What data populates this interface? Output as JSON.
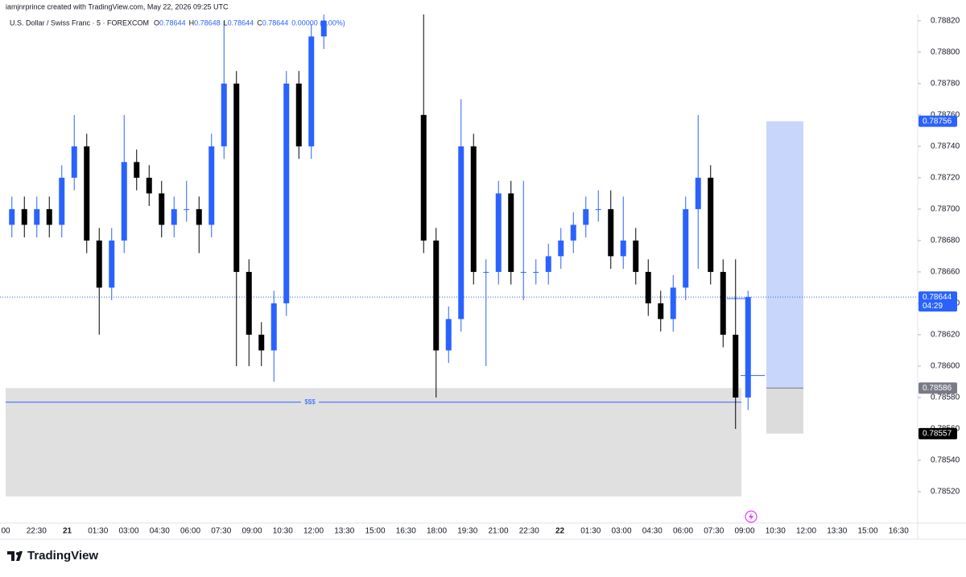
{
  "header": {
    "attribution": "iamjnrprince created with TradingView.com, May 22, 2026 09:25 UTC",
    "symbol": "U.S. Dollar / Swiss Franc · 5 · FOREXCOM",
    "ohlc": [
      {
        "label": "O",
        "value": "0.78644"
      },
      {
        "label": "H",
        "value": "0.78648"
      },
      {
        "label": "L",
        "value": "0.78644"
      },
      {
        "label": "C",
        "value": "0.78644"
      }
    ],
    "change": "0.00000 (0.00%)"
  },
  "chart_data": {
    "type": "candlestick",
    "up_color": "#2962ff",
    "down_color": "#000000",
    "open": [
      0.7869,
      0.787,
      0.7869,
      0.787,
      0.7869,
      0.7872,
      0.7874,
      0.7868,
      0.7865,
      0.7868,
      0.7873,
      0.7872,
      0.7871,
      0.7869,
      0.787,
      0.787,
      0.7869,
      0.7874,
      0.7878,
      0.7866,
      0.7862,
      0.7861,
      0.7864,
      0.7878,
      0.7874,
      0.7881,
      null,
      null,
      null,
      null,
      null,
      null,
      null,
      0.7876,
      0.7868,
      0.7861,
      0.7863,
      0.7874,
      0.7866,
      0.7866,
      0.7871,
      0.7866,
      0.7866,
      0.7866,
      0.7867,
      0.7868,
      0.7869,
      0.787,
      0.787,
      0.7867,
      0.7868,
      0.7866,
      0.7864,
      0.7863,
      0.7865,
      0.787,
      0.7872,
      0.7866,
      0.7862,
      0.7858
    ],
    "high": [
      0.78708,
      0.78708,
      0.78708,
      0.78708,
      0.78728,
      0.7876,
      0.78748,
      0.78688,
      0.78688,
      0.7876,
      0.78738,
      0.78728,
      0.78718,
      0.78708,
      0.78718,
      0.78708,
      0.78748,
      0.7882,
      0.78788,
      0.78668,
      0.78628,
      0.78648,
      0.78788,
      0.78788,
      0.78818,
      0.78826,
      null,
      null,
      null,
      null,
      null,
      null,
      null,
      0.78826,
      0.78688,
      0.78638,
      0.7877,
      0.78748,
      0.78668,
      0.78718,
      0.78718,
      0.78718,
      0.78668,
      0.78678,
      0.78688,
      0.78698,
      0.78708,
      0.78712,
      0.78712,
      0.78708,
      0.78688,
      0.78668,
      0.78648,
      0.78658,
      0.78708,
      0.7876,
      0.78728,
      0.78668,
      0.78668,
      0.78648
    ],
    "low": [
      0.78682,
      0.78682,
      0.78682,
      0.78682,
      0.78682,
      0.78712,
      0.78672,
      0.7862,
      0.78642,
      0.78672,
      0.78712,
      0.78702,
      0.78682,
      0.78682,
      0.78692,
      0.78672,
      0.78682,
      0.78732,
      0.786,
      0.786,
      0.786,
      0.7859,
      0.78632,
      0.78732,
      0.78732,
      0.78802,
      null,
      null,
      null,
      null,
      null,
      null,
      null,
      0.78672,
      0.7858,
      0.78602,
      0.78622,
      0.78652,
      0.786,
      0.78652,
      0.78652,
      0.78642,
      0.78652,
      0.78652,
      0.78662,
      0.78672,
      0.78682,
      0.78692,
      0.78662,
      0.78662,
      0.78652,
      0.78632,
      0.78622,
      0.78622,
      0.78642,
      0.78662,
      0.78652,
      0.78612,
      0.7856,
      0.78572
    ],
    "close": [
      0.787,
      0.7869,
      0.787,
      0.7869,
      0.7872,
      0.7874,
      0.7868,
      0.7865,
      0.7868,
      0.7873,
      0.7872,
      0.7871,
      0.7869,
      0.787,
      0.787,
      0.7869,
      0.7874,
      0.7878,
      0.7866,
      0.7862,
      0.7861,
      0.7864,
      0.7878,
      0.7874,
      0.7881,
      0.7882,
      null,
      null,
      null,
      null,
      null,
      null,
      null,
      0.7868,
      0.7861,
      0.7863,
      0.7874,
      0.7866,
      0.7866,
      0.7871,
      0.7866,
      0.7866,
      0.7866,
      0.7867,
      0.7868,
      0.7869,
      0.787,
      0.787,
      0.7867,
      0.7868,
      0.7866,
      0.7864,
      0.7863,
      0.7865,
      0.787,
      0.7872,
      0.7866,
      0.7862,
      0.7858,
      0.78644
    ],
    "ylim": [
      0.785,
      0.78824
    ],
    "yticks": [
      {
        "value": 0.7852,
        "label": "0.78520"
      },
      {
        "value": 0.7854,
        "label": "0.78540"
      },
      {
        "value": 0.7856,
        "label": "0.78560"
      },
      {
        "value": 0.7858,
        "label": "0.78580"
      },
      {
        "value": 0.786,
        "label": "0.78600"
      },
      {
        "value": 0.7862,
        "label": "0.78620"
      },
      {
        "value": 0.7864,
        "label": "0.78640"
      },
      {
        "value": 0.7866,
        "label": "0.78660"
      },
      {
        "value": 0.7868,
        "label": "0.78680"
      },
      {
        "value": 0.787,
        "label": "0.78700"
      },
      {
        "value": 0.7872,
        "label": "0.78720"
      },
      {
        "value": 0.7874,
        "label": "0.78740"
      },
      {
        "value": 0.7876,
        "label": "0.78760"
      },
      {
        "value": 0.7878,
        "label": "0.78780"
      },
      {
        "value": 0.788,
        "label": "0.78800"
      },
      {
        "value": 0.7882,
        "label": "0.78820"
      }
    ],
    "x_labels": [
      "00",
      "22:30",
      "21",
      "01:30",
      "03:00",
      "04:30",
      "06:00",
      "07:30",
      "09:00",
      "10:30",
      "12:00",
      "13:30",
      "15:00",
      "16:30",
      "18:00",
      "19:30",
      "21:00",
      "22:30",
      "22",
      "01:30",
      "03:00",
      "04:30",
      "06:00",
      "07:30",
      "09:00",
      "10:30",
      "12:00",
      "13:30",
      "15:00",
      "16:30"
    ],
    "current_price": {
      "value": 0.78644,
      "label": "0.78644",
      "countdown": "04:29"
    },
    "zone": {
      "top": 0.78586,
      "bottom": 0.78517
    },
    "liquidity": {
      "value": 0.78577,
      "label": "$$$"
    },
    "levels": [
      0.78594,
      0.78643
    ],
    "position": {
      "target": {
        "value": 0.78756,
        "label": "0.78756"
      },
      "entry": {
        "value": 0.78586,
        "label": "0.78586"
      },
      "stop": {
        "value": 0.78557,
        "label": "0.78557"
      }
    }
  },
  "footer": {
    "logo": "TradingView"
  }
}
